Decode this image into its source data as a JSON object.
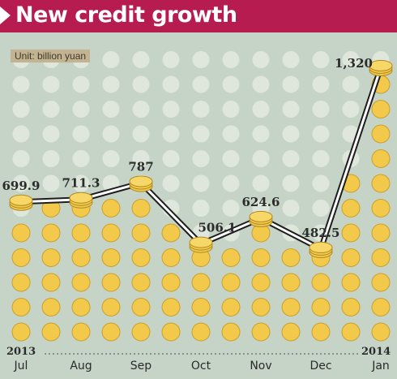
{
  "header": {
    "title": "New credit growth"
  },
  "unit_label": "Unit: billion yuan",
  "colors": {
    "header_bg": "#b61c4f",
    "background": "#c6d4c8",
    "dot_empty": "#dfe7dc",
    "coin": "#f2c94a",
    "line": "#1e1e1e"
  },
  "axis": {
    "start_year": "2013",
    "end_year": "2014"
  },
  "chart_data": {
    "type": "line",
    "title": "New credit growth",
    "ylabel": "Unit: billion yuan",
    "categories": [
      "Jul",
      "Aug",
      "Sep",
      "Oct",
      "Nov",
      "Dec",
      "Jan"
    ],
    "values": [
      699.9,
      711.3,
      787,
      506.1,
      624.6,
      482.5,
      1320
    ],
    "value_labels": [
      "699.9",
      "711.3",
      "787",
      "506.1",
      "624.6",
      "482.5",
      "1,320"
    ],
    "grid": true,
    "legend": "none"
  }
}
